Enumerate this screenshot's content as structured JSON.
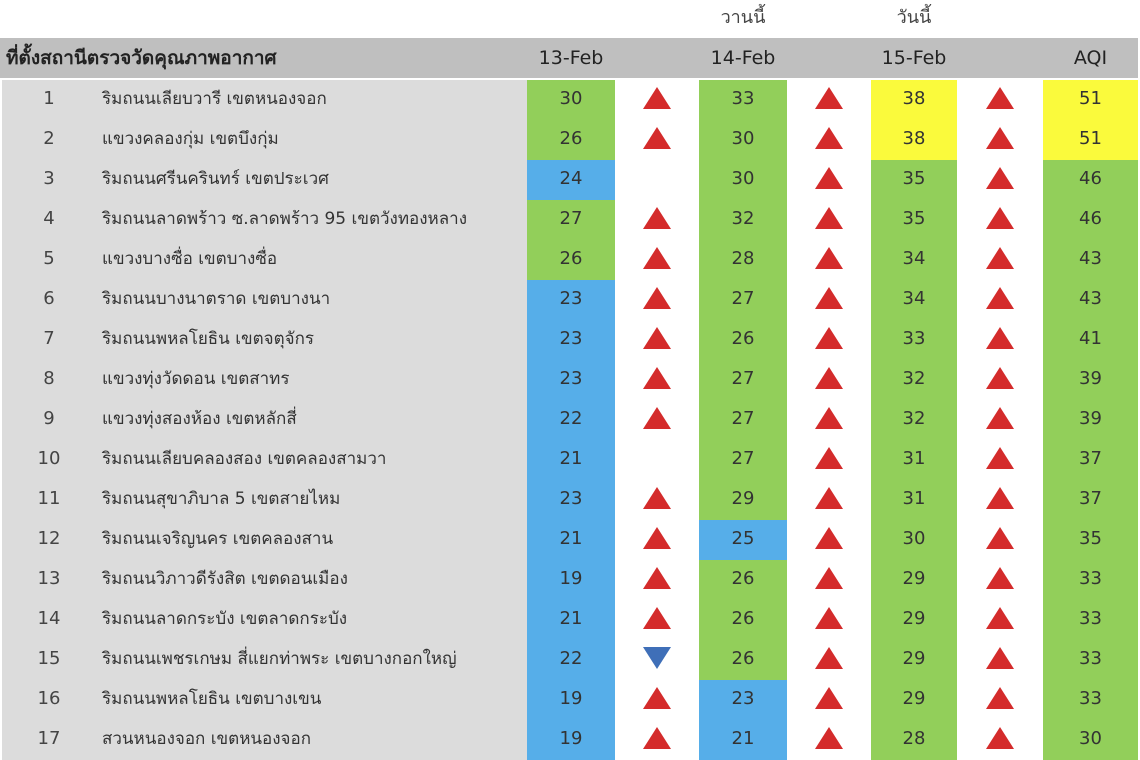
{
  "top_labels": {
    "col14": "วานนี้",
    "col15": "วันนี้"
  },
  "header": {
    "location": "ที่ตั้งสถานีตรวจวัดคุณภาพอากาศ",
    "d13": "13-Feb",
    "d14": "14-Feb",
    "d15": "15-Feb",
    "aqi": "AQI"
  },
  "colors": {
    "green": "#92cf5a",
    "blue": "#56aee9",
    "yellow": "#fafa3c",
    "arrow_up": "#d42b2b",
    "arrow_down": "#3f6fb8"
  },
  "rows": [
    {
      "no": "1",
      "name": "ริมถนนเลียบวารี เขตหนองจอก",
      "d13": "30",
      "d13c": "green",
      "a1": "up",
      "d14": "33",
      "d14c": "green",
      "a2": "up",
      "d15": "38",
      "d15c": "yellow",
      "a3": "up",
      "aqi": "51",
      "aqic": "yellow"
    },
    {
      "no": "2",
      "name": "แขวงคลองกุ่ม เขตบึงกุ่ม",
      "d13": "26",
      "d13c": "green",
      "a1": "up",
      "d14": "30",
      "d14c": "green",
      "a2": "up",
      "d15": "38",
      "d15c": "yellow",
      "a3": "up",
      "aqi": "51",
      "aqic": "yellow"
    },
    {
      "no": "3",
      "name": "ริมถนนศรีนครินทร์ เขตประเวศ",
      "d13": "24",
      "d13c": "blue",
      "a1": "",
      "d14": "30",
      "d14c": "green",
      "a2": "up",
      "d15": "35",
      "d15c": "green",
      "a3": "up",
      "aqi": "46",
      "aqic": "green"
    },
    {
      "no": "4",
      "name": "ริมถนนลาดพร้าว ซ.ลาดพร้าว 95 เขตวังทองหลาง",
      "d13": "27",
      "d13c": "green",
      "a1": "up",
      "d14": "32",
      "d14c": "green",
      "a2": "up",
      "d15": "35",
      "d15c": "green",
      "a3": "up",
      "aqi": "46",
      "aqic": "green"
    },
    {
      "no": "5",
      "name": "แขวงบางซื่อ เขตบางซื่อ",
      "d13": "26",
      "d13c": "green",
      "a1": "up",
      "d14": "28",
      "d14c": "green",
      "a2": "up",
      "d15": "34",
      "d15c": "green",
      "a3": "up",
      "aqi": "43",
      "aqic": "green"
    },
    {
      "no": "6",
      "name": "ริมถนนบางนาตราด เขตบางนา",
      "d13": "23",
      "d13c": "blue",
      "a1": "up",
      "d14": "27",
      "d14c": "green",
      "a2": "up",
      "d15": "34",
      "d15c": "green",
      "a3": "up",
      "aqi": "43",
      "aqic": "green"
    },
    {
      "no": "7",
      "name": "ริมถนนพหลโยธิน เขตจตุจักร",
      "d13": "23",
      "d13c": "blue",
      "a1": "up",
      "d14": "26",
      "d14c": "green",
      "a2": "up",
      "d15": "33",
      "d15c": "green",
      "a3": "up",
      "aqi": "41",
      "aqic": "green"
    },
    {
      "no": "8",
      "name": "แขวงทุ่งวัดดอน เขตสาทร",
      "d13": "23",
      "d13c": "blue",
      "a1": "up",
      "d14": "27",
      "d14c": "green",
      "a2": "up",
      "d15": "32",
      "d15c": "green",
      "a3": "up",
      "aqi": "39",
      "aqic": "green"
    },
    {
      "no": "9",
      "name": "แขวงทุ่งสองห้อง เขตหลักสี่",
      "d13": "22",
      "d13c": "blue",
      "a1": "up",
      "d14": "27",
      "d14c": "green",
      "a2": "up",
      "d15": "32",
      "d15c": "green",
      "a3": "up",
      "aqi": "39",
      "aqic": "green"
    },
    {
      "no": "10",
      "name": "ริมถนนเลียบคลองสอง เขตคลองสามวา",
      "d13": "21",
      "d13c": "blue",
      "a1": "",
      "d14": "27",
      "d14c": "green",
      "a2": "up",
      "d15": "31",
      "d15c": "green",
      "a3": "up",
      "aqi": "37",
      "aqic": "green"
    },
    {
      "no": "11",
      "name": "ริมถนนสุขาภิบาล 5 เขตสายไหม",
      "d13": "23",
      "d13c": "blue",
      "a1": "up",
      "d14": "29",
      "d14c": "green",
      "a2": "up",
      "d15": "31",
      "d15c": "green",
      "a3": "up",
      "aqi": "37",
      "aqic": "green"
    },
    {
      "no": "12",
      "name": "ริมถนนเจริญนคร เขตคลองสาน",
      "d13": "21",
      "d13c": "blue",
      "a1": "up",
      "d14": "25",
      "d14c": "blue",
      "a2": "up",
      "d15": "30",
      "d15c": "green",
      "a3": "up",
      "aqi": "35",
      "aqic": "green"
    },
    {
      "no": "13",
      "name": "ริมถนนวิภาวดีรังสิต เขตดอนเมือง",
      "d13": "19",
      "d13c": "blue",
      "a1": "up",
      "d14": "26",
      "d14c": "green",
      "a2": "up",
      "d15": "29",
      "d15c": "green",
      "a3": "up",
      "aqi": "33",
      "aqic": "green"
    },
    {
      "no": "14",
      "name": "ริมถนนลาดกระบัง เขตลาดกระบัง",
      "d13": "21",
      "d13c": "blue",
      "a1": "up",
      "d14": "26",
      "d14c": "green",
      "a2": "up",
      "d15": "29",
      "d15c": "green",
      "a3": "up",
      "aqi": "33",
      "aqic": "green"
    },
    {
      "no": "15",
      "name": "ริมถนนเพชรเกษม สี่แยกท่าพระ เขตบางกอกใหญ่",
      "d13": "22",
      "d13c": "blue",
      "a1": "down",
      "d14": "26",
      "d14c": "green",
      "a2": "up",
      "d15": "29",
      "d15c": "green",
      "a3": "up",
      "aqi": "33",
      "aqic": "green"
    },
    {
      "no": "16",
      "name": "ริมถนนพหลโยธิน เขตบางเขน",
      "d13": "19",
      "d13c": "blue",
      "a1": "up",
      "d14": "23",
      "d14c": "blue",
      "a2": "up",
      "d15": "29",
      "d15c": "green",
      "a3": "up",
      "aqi": "33",
      "aqic": "green"
    },
    {
      "no": "17",
      "name": "สวนหนองจอก เขตหนองจอก",
      "d13": "19",
      "d13c": "blue",
      "a1": "up",
      "d14": "21",
      "d14c": "blue",
      "a2": "up",
      "d15": "28",
      "d15c": "green",
      "a3": "up",
      "aqi": "30",
      "aqic": "green"
    }
  ]
}
